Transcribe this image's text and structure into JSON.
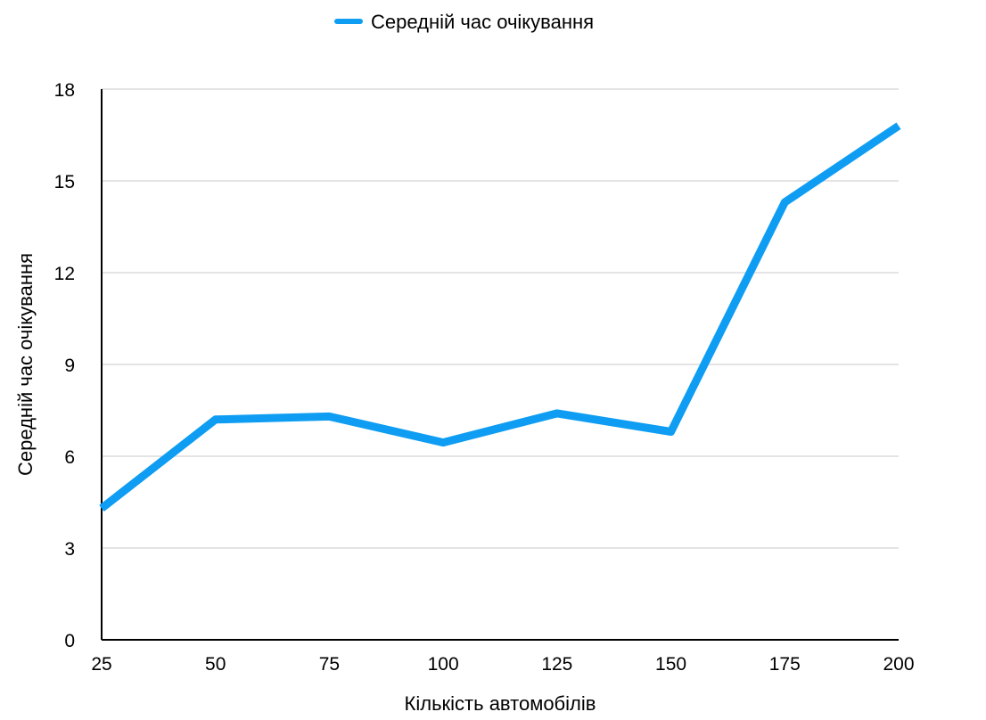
{
  "chart_data": {
    "type": "line",
    "x": [
      25,
      50,
      75,
      100,
      125,
      150,
      175,
      200
    ],
    "series": [
      {
        "name": "Середній час очікування",
        "color": "#0e9df2",
        "values": [
          4.3,
          7.2,
          7.3,
          6.45,
          7.4,
          6.8,
          14.3,
          16.8
        ]
      }
    ],
    "xlabel": "Кількість автомобілів",
    "ylabel": "Середній час очікування",
    "x_ticks": [
      "25",
      "50",
      "75",
      "100",
      "125",
      "150",
      "175",
      "200"
    ],
    "y_ticks": [
      "0",
      "3",
      "6",
      "9",
      "12",
      "15",
      "18"
    ],
    "ylim": [
      0,
      18
    ],
    "xlim": [
      25,
      200
    ],
    "grid": true,
    "legend_position": "top-center"
  }
}
